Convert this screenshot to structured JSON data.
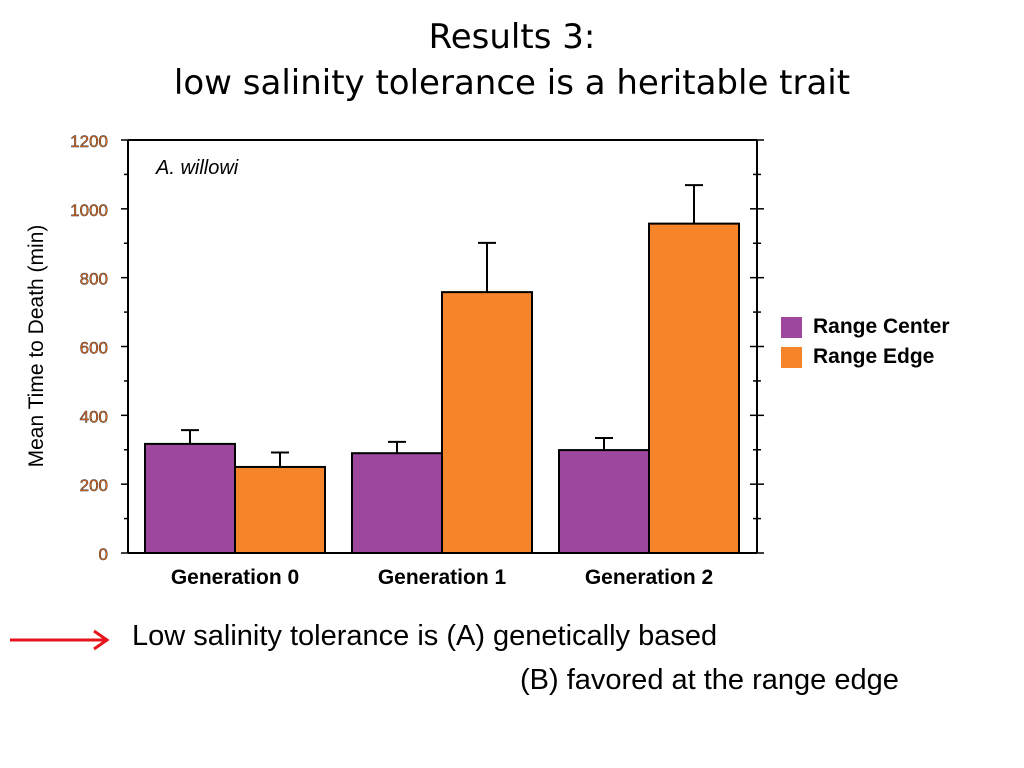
{
  "slide": {
    "title_line1": "Results 3:",
    "title_line2": "low salinity tolerance is a heritable trait"
  },
  "chart_data": {
    "type": "bar",
    "annotation": "A. willowi",
    "ylabel": "Mean Time to Death (min)",
    "xlabel": "",
    "ylim": [
      0,
      1200
    ],
    "yticks": [
      0,
      200,
      400,
      600,
      800,
      1000,
      1200
    ],
    "categories": [
      "Generation 0",
      "Generation 1",
      "Generation 2"
    ],
    "series": [
      {
        "name": "Range Center",
        "color": "#9e479e",
        "values": [
          317,
          290,
          299
        ],
        "errors": [
          40,
          33,
          35
        ]
      },
      {
        "name": "Range Edge",
        "color": "#f5842a",
        "values": [
          250,
          758,
          957
        ],
        "errors": [
          42,
          143,
          112
        ]
      }
    ],
    "legend": "right",
    "grid": false,
    "error_bars": "upper"
  },
  "conclusion": {
    "line1": "Low salinity tolerance is (A) genetically based",
    "line2": "(B) favored at the range edge",
    "arrow_color": "#e8141b",
    "arrow_icon": "right-arrow-icon"
  }
}
